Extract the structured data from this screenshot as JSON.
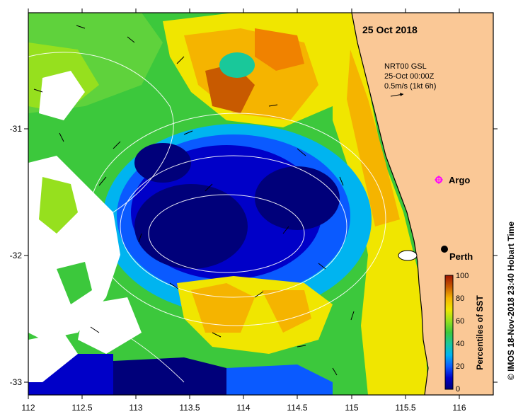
{
  "date_title": "25 Oct 2018",
  "current_info": {
    "line1": "NRT00 GSL",
    "line2": "25-Oct 00:00Z",
    "line3": "0.5m/s (1kt 6h)"
  },
  "places": {
    "argo": "Argo",
    "perth": "Perth"
  },
  "axes": {
    "x_ticks": [
      "112",
      "112.5",
      "113",
      "113.5",
      "114",
      "114.5",
      "115",
      "115.5",
      "116"
    ],
    "y_ticks": [
      "-31",
      "-32",
      "-33"
    ]
  },
  "colorbar": {
    "title": "Percentiles of SST",
    "ticks": [
      "100",
      "80",
      "60",
      "40",
      "20",
      "0"
    ],
    "colors": [
      "#00007a",
      "#0000c8",
      "#0a5aff",
      "#00b4f0",
      "#19c89a",
      "#3cc83c",
      "#96e01e",
      "#f0e600",
      "#f5b400",
      "#f08200",
      "#c85a00",
      "#a01400"
    ]
  },
  "credit": "© IMOS 18-Nov-2018 23:40 Hobart Time",
  "colors": {
    "land": "#fac896",
    "argo_marker": "#ff00ff",
    "perth_marker": "#000000"
  }
}
